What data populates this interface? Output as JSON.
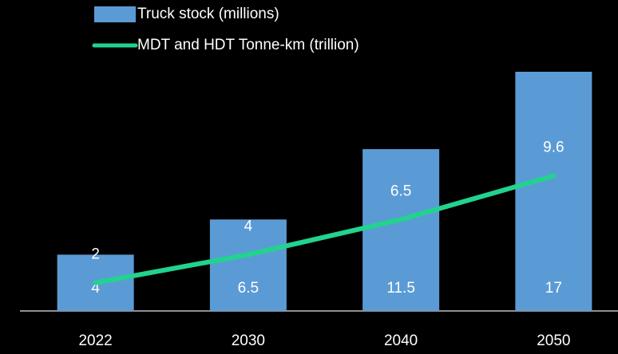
{
  "chart_data": {
    "type": "bar",
    "categories": [
      "2022",
      "2030",
      "2040",
      "2050"
    ],
    "series": [
      {
        "name": "Truck stock (millions)",
        "type": "bar",
        "color": "#5b9bd5",
        "values": [
          4,
          6.5,
          11.5,
          17
        ]
      },
      {
        "name": "MDT and HDT Tonne-km (trillion)",
        "type": "line",
        "color": "#22d38e",
        "values": [
          2,
          4,
          6.5,
          9.6
        ]
      }
    ],
    "legend": "top-left"
  }
}
